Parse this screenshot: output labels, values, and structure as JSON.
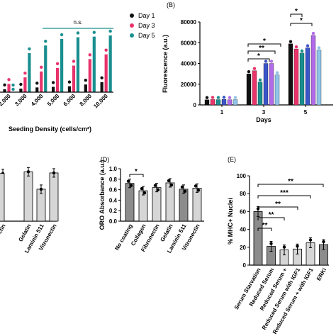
{
  "chart_data": [
    {
      "id": "A",
      "type": "bar",
      "panel_label": "",
      "xlabel": "Seeding  Density (cells/cm²)",
      "ylabel": "",
      "categories": [
        "2,000",
        "3,000",
        "4,000",
        "5,000",
        "6,000",
        "8,000",
        "10,000"
      ],
      "ylim": [
        0,
        12
      ],
      "series": [
        {
          "name": "Day 1",
          "color": "#111111",
          "values": [
            0.5,
            0.6,
            0.8,
            0.9,
            1.0,
            1.3,
            1.7
          ]
        },
        {
          "name": "Day 3",
          "color": "#e8336b",
          "values": [
            1.4,
            2.5,
            3.5,
            4.1,
            4.5,
            5.6,
            6.4
          ]
        },
        {
          "name": "Day 5",
          "color": "#1a8f8f",
          "values": [
            0,
            6.6,
            7.9,
            9.0,
            9.3,
            9.4,
            9.6
          ]
        }
      ],
      "annotation": "n.s."
    },
    {
      "id": "B",
      "type": "bar",
      "panel_label": "(B)",
      "xlabel": "Days",
      "ylabel": "Fluorescence (a.u.)",
      "categories": [
        "1",
        "3",
        "5"
      ],
      "ylim": [
        0,
        80000
      ],
      "yticks": [
        "0",
        "20000",
        "40000",
        "60000",
        "80000"
      ],
      "bar_colors": [
        "#111111",
        "#e8336b",
        "#1a8f8f",
        "#3b55c9",
        "#b06ae8",
        "#8fc3ea"
      ],
      "values": [
        [
          5000,
          5200,
          5100,
          5300,
          5000,
          5100
        ],
        [
          30000,
          33000,
          22000,
          40000,
          40000,
          29000
        ],
        [
          59000,
          54000,
          50000,
          55000,
          67000,
          53000
        ]
      ],
      "significance": [
        "*",
        "**",
        "*",
        "*",
        "*"
      ]
    },
    {
      "id": "C",
      "type": "bar",
      "panel_label": "",
      "categories": [
        "onectin",
        "Gelatin",
        "Laminin 511",
        "Vitronectin"
      ],
      "ylim": [
        0,
        1
      ],
      "values": [
        0.82,
        0.85,
        0.55,
        0.83
      ]
    },
    {
      "id": "D",
      "type": "bar",
      "panel_label": "(D)",
      "ylabel": "ORO Absorbance (a.u.)",
      "categories": [
        "No coating",
        "Collagen",
        "Fibronectin",
        "Gelatin",
        "Laminin 511",
        "Vitronectin"
      ],
      "ylim": [
        0,
        1.0
      ],
      "yticks": [
        "0.0",
        "0.2",
        "0.4",
        "0.6",
        "0.8",
        "1.0"
      ],
      "values": [
        0.72,
        0.58,
        0.64,
        0.73,
        0.61,
        0.63
      ],
      "significance": [
        "*"
      ]
    },
    {
      "id": "E",
      "type": "bar",
      "panel_label": "(E)",
      "ylabel": "% MHC+ Nuclei",
      "categories": [
        "Serum Starvation",
        "Reduced Serum",
        "Reduced Serum +",
        "Reduced Serum with IGF1",
        "Reduced Serum + with IGF1",
        "ERKi"
      ],
      "ylim": [
        0,
        100
      ],
      "yticks": [
        "0",
        "20",
        "40",
        "60",
        "80",
        "100"
      ],
      "values": [
        60,
        21,
        17,
        18,
        25,
        23
      ],
      "significance": [
        "**",
        "***",
        "**",
        "**",
        "**"
      ]
    }
  ]
}
